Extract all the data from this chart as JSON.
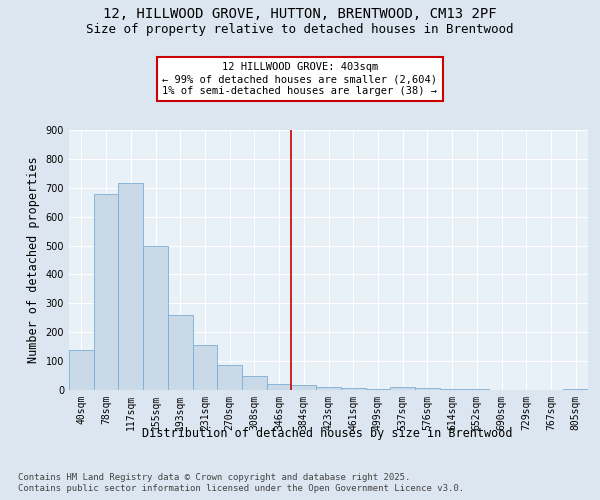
{
  "title_line1": "12, HILLWOOD GROVE, HUTTON, BRENTWOOD, CM13 2PF",
  "title_line2": "Size of property relative to detached houses in Brentwood",
  "xlabel": "Distribution of detached houses by size in Brentwood",
  "ylabel": "Number of detached properties",
  "footer_line1": "Contains HM Land Registry data © Crown copyright and database right 2025.",
  "footer_line2": "Contains public sector information licensed under the Open Government Licence v3.0.",
  "categories": [
    "40sqm",
    "78sqm",
    "117sqm",
    "155sqm",
    "193sqm",
    "231sqm",
    "270sqm",
    "308sqm",
    "346sqm",
    "384sqm",
    "423sqm",
    "461sqm",
    "499sqm",
    "537sqm",
    "576sqm",
    "614sqm",
    "652sqm",
    "690sqm",
    "729sqm",
    "767sqm",
    "805sqm"
  ],
  "values": [
    140,
    680,
    715,
    500,
    258,
    157,
    88,
    50,
    20,
    17,
    10,
    6,
    5,
    10,
    7,
    5,
    2,
    1,
    1,
    1,
    2
  ],
  "bar_color": "#c9d9e8",
  "bar_edge_color": "#7bafd4",
  "annotation_text_line1": "12 HILLWOOD GROVE: 403sqm",
  "annotation_text_line2": "← 99% of detached houses are smaller (2,604)",
  "annotation_text_line3": "1% of semi-detached houses are larger (38) →",
  "vline_color": "#cc0000",
  "vline_x_index": 9,
  "annotation_box_color": "#ffffff",
  "annotation_box_edge_color": "#cc0000",
  "ylim": [
    0,
    900
  ],
  "yticks": [
    0,
    100,
    200,
    300,
    400,
    500,
    600,
    700,
    800,
    900
  ],
  "background_color": "#dce6f0",
  "plot_background_color": "#e8f0f8",
  "grid_color": "#ffffff",
  "title_fontsize": 10,
  "subtitle_fontsize": 9,
  "axis_label_fontsize": 8.5,
  "tick_fontsize": 7,
  "footer_fontsize": 6.5,
  "annotation_fontsize": 7.5
}
